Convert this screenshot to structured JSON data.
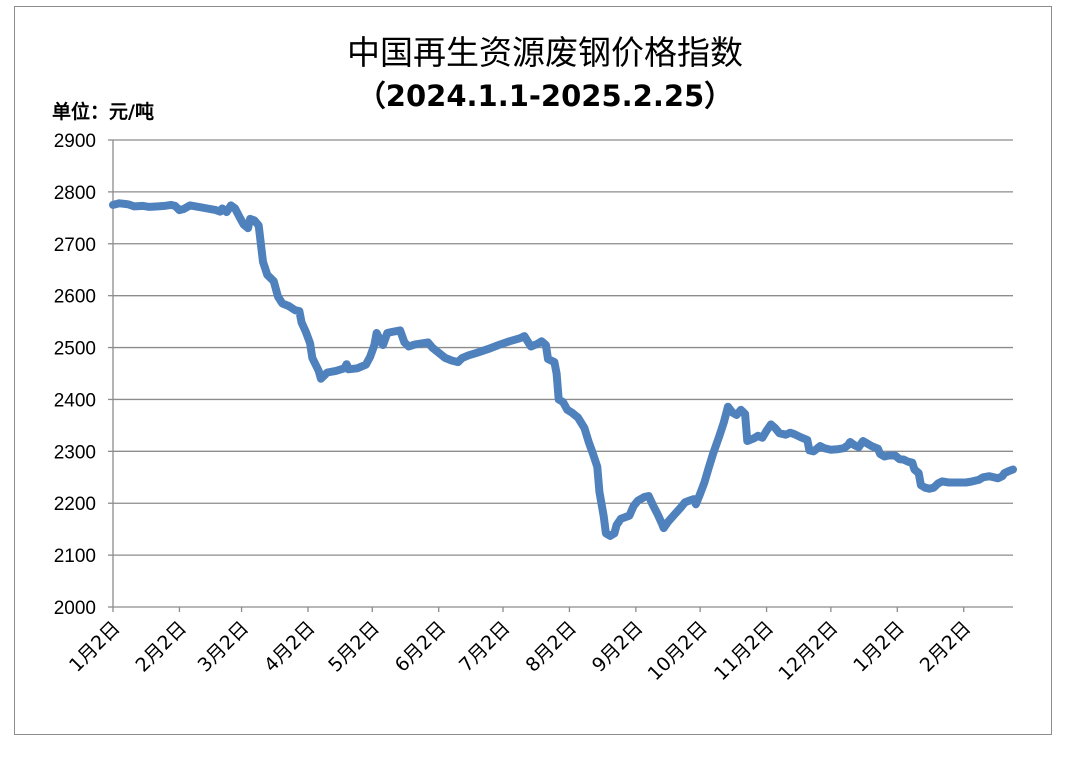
{
  "chart_data": {
    "type": "line",
    "title": "中国再生资源废钢价格指数",
    "subtitle": "（2024.1.1-2025.2.25）",
    "unit_label": "单位：元/吨",
    "xlabel": "",
    "ylabel": "",
    "ylim": [
      2000,
      2900
    ],
    "yticks": [
      2000,
      2100,
      2200,
      2300,
      2400,
      2500,
      2600,
      2700,
      2800,
      2900
    ],
    "x_tick_labels": [
      "1月2日",
      "2月2日",
      "3月2日",
      "4月2日",
      "5月2日",
      "6月2日",
      "7月2日",
      "8月2日",
      "9月2日",
      "10月2日",
      "11月2日",
      "12月2日",
      "1月2日",
      "2月2日"
    ],
    "x_tick_days": [
      0,
      31,
      60,
      91,
      121,
      152,
      182,
      213,
      244,
      274,
      305,
      335,
      366,
      397
    ],
    "x_max_day": 420,
    "grid": true,
    "legend": "none",
    "color": "#4f81bd",
    "series": [
      {
        "points": [
          [
            0,
            2775
          ],
          [
            3,
            2778
          ],
          [
            7,
            2776
          ],
          [
            10,
            2772
          ],
          [
            14,
            2773
          ],
          [
            17,
            2771
          ],
          [
            21,
            2772
          ],
          [
            24,
            2773
          ],
          [
            27,
            2775
          ],
          [
            29,
            2773
          ],
          [
            31,
            2765
          ],
          [
            33,
            2767
          ],
          [
            36,
            2774
          ],
          [
            40,
            2771
          ],
          [
            44,
            2768
          ],
          [
            48,
            2765
          ],
          [
            50,
            2762
          ],
          [
            51,
            2768
          ],
          [
            53,
            2761
          ],
          [
            55,
            2774
          ],
          [
            57,
            2768
          ],
          [
            59,
            2752
          ],
          [
            61,
            2737
          ],
          [
            63,
            2730
          ],
          [
            64,
            2748
          ],
          [
            66,
            2745
          ],
          [
            68,
            2735
          ],
          [
            70,
            2665
          ],
          [
            72,
            2640
          ],
          [
            75,
            2628
          ],
          [
            77,
            2598
          ],
          [
            79,
            2585
          ],
          [
            82,
            2580
          ],
          [
            85,
            2572
          ],
          [
            87,
            2570
          ],
          [
            88,
            2548
          ],
          [
            90,
            2530
          ],
          [
            92,
            2508
          ],
          [
            93,
            2480
          ],
          [
            96,
            2455
          ],
          [
            97,
            2440
          ],
          [
            100,
            2452
          ],
          [
            104,
            2455
          ],
          [
            108,
            2460
          ],
          [
            109,
            2468
          ],
          [
            110,
            2458
          ],
          [
            114,
            2460
          ],
          [
            118,
            2467
          ],
          [
            120,
            2482
          ],
          [
            122,
            2505
          ],
          [
            123,
            2528
          ],
          [
            125,
            2512
          ],
          [
            126,
            2505
          ],
          [
            128,
            2528
          ],
          [
            130,
            2530
          ],
          [
            134,
            2533
          ],
          [
            136,
            2510
          ],
          [
            138,
            2502
          ],
          [
            141,
            2506
          ],
          [
            144,
            2508
          ],
          [
            147,
            2510
          ],
          [
            149,
            2500
          ],
          [
            152,
            2490
          ],
          [
            155,
            2480
          ],
          [
            158,
            2475
          ],
          [
            161,
            2472
          ],
          [
            163,
            2480
          ],
          [
            166,
            2485
          ],
          [
            170,
            2490
          ],
          [
            175,
            2497
          ],
          [
            180,
            2505
          ],
          [
            185,
            2512
          ],
          [
            190,
            2518
          ],
          [
            192,
            2522
          ],
          [
            195,
            2502
          ],
          [
            198,
            2507
          ],
          [
            200,
            2512
          ],
          [
            202,
            2505
          ],
          [
            203,
            2478
          ],
          [
            206,
            2472
          ],
          [
            207,
            2450
          ],
          [
            208,
            2400
          ],
          [
            210,
            2395
          ],
          [
            212,
            2380
          ],
          [
            214,
            2375
          ],
          [
            217,
            2365
          ],
          [
            220,
            2345
          ],
          [
            222,
            2318
          ],
          [
            224,
            2295
          ],
          [
            226,
            2270
          ],
          [
            227,
            2222
          ],
          [
            229,
            2175
          ],
          [
            230,
            2142
          ],
          [
            232,
            2137
          ],
          [
            234,
            2142
          ],
          [
            235,
            2158
          ],
          [
            237,
            2170
          ],
          [
            239,
            2173
          ],
          [
            241,
            2176
          ],
          [
            243,
            2195
          ],
          [
            245,
            2205
          ],
          [
            248,
            2212
          ],
          [
            250,
            2214
          ],
          [
            252,
            2196
          ],
          [
            254,
            2180
          ],
          [
            256,
            2162
          ],
          [
            257,
            2152
          ],
          [
            259,
            2164
          ],
          [
            262,
            2178
          ],
          [
            265,
            2192
          ],
          [
            267,
            2202
          ],
          [
            269,
            2205
          ],
          [
            271,
            2208
          ],
          [
            272,
            2198
          ],
          [
            274,
            2218
          ],
          [
            276,
            2240
          ],
          [
            278,
            2268
          ],
          [
            280,
            2295
          ],
          [
            283,
            2330
          ],
          [
            285,
            2355
          ],
          [
            287,
            2386
          ],
          [
            289,
            2375
          ],
          [
            291,
            2370
          ],
          [
            293,
            2380
          ],
          [
            295,
            2372
          ],
          [
            296,
            2320
          ],
          [
            299,
            2325
          ],
          [
            301,
            2330
          ],
          [
            303,
            2326
          ],
          [
            305,
            2340
          ],
          [
            307,
            2352
          ],
          [
            309,
            2345
          ],
          [
            311,
            2335
          ],
          [
            314,
            2332
          ],
          [
            316,
            2336
          ],
          [
            318,
            2333
          ],
          [
            321,
            2327
          ],
          [
            324,
            2322
          ],
          [
            325,
            2302
          ],
          [
            327,
            2300
          ],
          [
            330,
            2310
          ],
          [
            332,
            2306
          ],
          [
            335,
            2303
          ],
          [
            338,
            2304
          ],
          [
            341,
            2306
          ],
          [
            343,
            2312
          ],
          [
            344,
            2318
          ],
          [
            346,
            2312
          ],
          [
            348,
            2308
          ],
          [
            350,
            2320
          ],
          [
            352,
            2315
          ],
          [
            354,
            2310
          ],
          [
            357,
            2305
          ],
          [
            358,
            2295
          ],
          [
            360,
            2290
          ],
          [
            362,
            2292
          ],
          [
            365,
            2292
          ],
          [
            367,
            2285
          ],
          [
            369,
            2284
          ],
          [
            371,
            2280
          ],
          [
            373,
            2278
          ],
          [
            374,
            2265
          ],
          [
            376,
            2258
          ],
          [
            377,
            2235
          ],
          [
            379,
            2230
          ],
          [
            381,
            2228
          ],
          [
            383,
            2230
          ],
          [
            385,
            2238
          ],
          [
            387,
            2242
          ],
          [
            390,
            2240
          ],
          [
            394,
            2240
          ],
          [
            398,
            2240
          ],
          [
            401,
            2242
          ],
          [
            404,
            2245
          ],
          [
            406,
            2250
          ],
          [
            409,
            2252
          ],
          [
            411,
            2250
          ],
          [
            413,
            2248
          ],
          [
            415,
            2252
          ],
          [
            416,
            2258
          ],
          [
            418,
            2262
          ],
          [
            420,
            2265
          ]
        ]
      }
    ]
  }
}
